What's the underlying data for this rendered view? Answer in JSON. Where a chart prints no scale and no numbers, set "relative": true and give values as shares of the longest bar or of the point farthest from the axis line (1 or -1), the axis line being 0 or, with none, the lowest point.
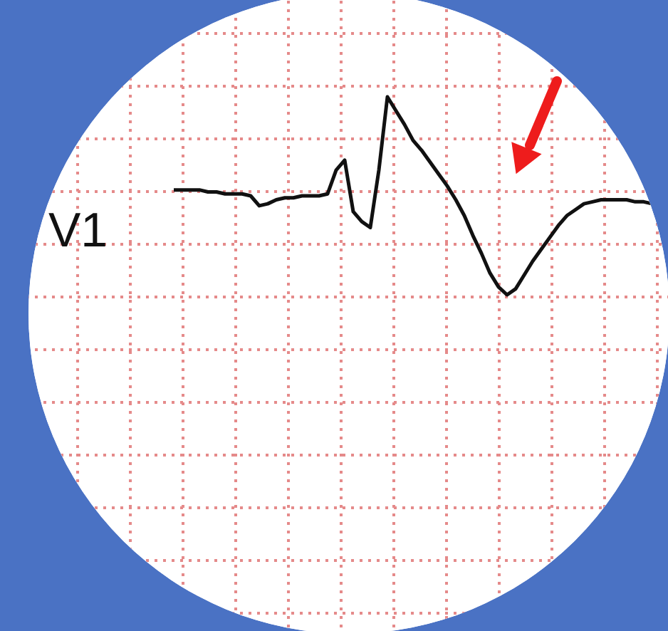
{
  "chart_data": {
    "type": "line",
    "relative": true,
    "grid": true,
    "categories": [
      null,
      null,
      null,
      null,
      null,
      null,
      null,
      null,
      null,
      null,
      null,
      null,
      null,
      null,
      null,
      null,
      null,
      null,
      null,
      null,
      null,
      null,
      null,
      null,
      null,
      null,
      null,
      null,
      null,
      null,
      null,
      null,
      null,
      null,
      null,
      null,
      null,
      null,
      null,
      null,
      null,
      null,
      null,
      null,
      null,
      null,
      null,
      null,
      null,
      null,
      null,
      null,
      null,
      null,
      null,
      null,
      null
    ],
    "series": [
      {
        "color": "#111111",
        "values": [
          0.53,
          0.53,
          0.53,
          0.53,
          0.52,
          0.52,
          0.51,
          0.51,
          0.51,
          0.5,
          0.45,
          0.46,
          0.48,
          0.49,
          0.49,
          0.5,
          0.5,
          0.5,
          0.51,
          0.63,
          0.68,
          0.42,
          0.37,
          0.34,
          0.63,
          1,
          0.93,
          0.86,
          0.78,
          0.73,
          0.67,
          0.61,
          0.55,
          0.48,
          0.4,
          0.3,
          0.21,
          0.11,
          0.04,
          0,
          0.03,
          0.1,
          0.17,
          0.23,
          0.29,
          0.35,
          0.4,
          0.43,
          0.46,
          0.47,
          0.48,
          0.48,
          0.48,
          0.48,
          0.47,
          0.47,
          0.46
        ]
      }
    ],
    "annotations": [
      "V1"
    ]
  }
}
